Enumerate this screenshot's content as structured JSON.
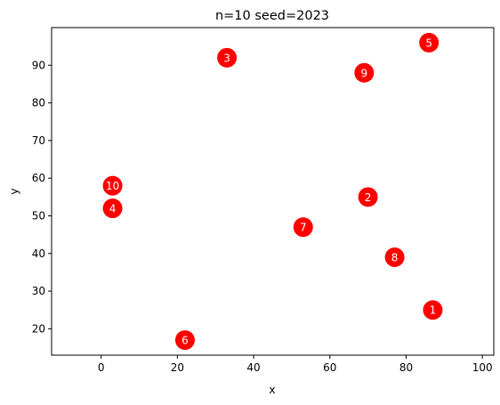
{
  "chart_data": {
    "type": "scatter",
    "title": "n=10 seed=2023",
    "xlabel": "x",
    "ylabel": "y",
    "xlim": [
      -13,
      103
    ],
    "ylim": [
      13,
      100
    ],
    "xticks": [
      0,
      20,
      40,
      60,
      80,
      100
    ],
    "yticks": [
      20,
      30,
      40,
      50,
      60,
      70,
      80,
      90
    ],
    "grid": false,
    "marker_color": "#ff0000",
    "label_color": "#ffffff",
    "points": [
      {
        "label": "1",
        "x": 87,
        "y": 25
      },
      {
        "label": "2",
        "x": 70,
        "y": 55
      },
      {
        "label": "3",
        "x": 33,
        "y": 92
      },
      {
        "label": "4",
        "x": 3,
        "y": 52
      },
      {
        "label": "5",
        "x": 86,
        "y": 96
      },
      {
        "label": "6",
        "x": 22,
        "y": 17
      },
      {
        "label": "7",
        "x": 53,
        "y": 47
      },
      {
        "label": "8",
        "x": 77,
        "y": 39
      },
      {
        "label": "9",
        "x": 69,
        "y": 88
      },
      {
        "label": "10",
        "x": 3,
        "y": 58
      }
    ]
  }
}
